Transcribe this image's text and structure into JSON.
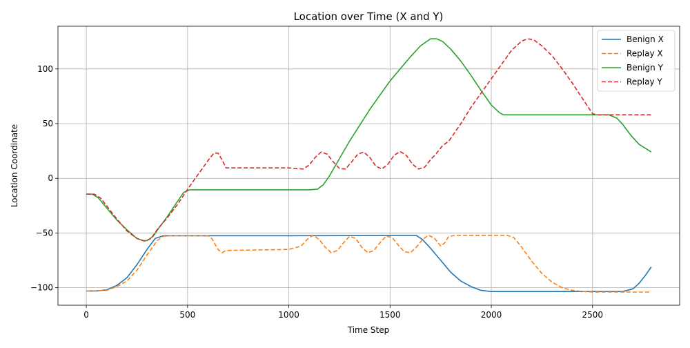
{
  "chart_data": {
    "type": "line",
    "title": "Location over Time (X and Y)",
    "xlabel": "Time Step",
    "ylabel": "Location Coordinate",
    "xlim": [
      -140,
      2930
    ],
    "ylim": [
      -116,
      139
    ],
    "xticks": [
      0,
      500,
      1000,
      1500,
      2000,
      2500
    ],
    "yticks": [
      -100,
      -50,
      0,
      50,
      100
    ],
    "xtick_labels": [
      "0",
      "500",
      "1000",
      "1500",
      "2000",
      "2500"
    ],
    "ytick_labels": [
      "−100",
      "−50",
      "0",
      "50",
      "100"
    ],
    "grid": true,
    "legend_position": "top-right",
    "series": [
      {
        "name": "Benign X",
        "color": "#1f77b4",
        "style": "solid",
        "points": [
          [
            0,
            -103
          ],
          [
            50,
            -103
          ],
          [
            100,
            -102
          ],
          [
            150,
            -98
          ],
          [
            200,
            -91
          ],
          [
            250,
            -79
          ],
          [
            300,
            -65
          ],
          [
            340,
            -55
          ],
          [
            380,
            -52.5
          ],
          [
            500,
            -52.5
          ],
          [
            1000,
            -52.5
          ],
          [
            1500,
            -52.3
          ],
          [
            1630,
            -52.3
          ],
          [
            1660,
            -56
          ],
          [
            1700,
            -64
          ],
          [
            1750,
            -75
          ],
          [
            1800,
            -86
          ],
          [
            1850,
            -94
          ],
          [
            1900,
            -99
          ],
          [
            1950,
            -102.5
          ],
          [
            2000,
            -103.5
          ],
          [
            2500,
            -103.5
          ],
          [
            2650,
            -103.5
          ],
          [
            2700,
            -101
          ],
          [
            2730,
            -96
          ],
          [
            2760,
            -89
          ],
          [
            2790,
            -81
          ]
        ]
      },
      {
        "name": "Replay X",
        "color": "#ff7f0e",
        "style": "dashed",
        "points": [
          [
            0,
            -103
          ],
          [
            100,
            -102.5
          ],
          [
            150,
            -99
          ],
          [
            200,
            -94
          ],
          [
            250,
            -84
          ],
          [
            300,
            -70
          ],
          [
            350,
            -57
          ],
          [
            380,
            -53
          ],
          [
            420,
            -52.5
          ],
          [
            600,
            -52.5
          ],
          [
            620,
            -55
          ],
          [
            650,
            -65
          ],
          [
            670,
            -68
          ],
          [
            690,
            -66
          ],
          [
            1000,
            -65
          ],
          [
            1060,
            -62
          ],
          [
            1090,
            -56
          ],
          [
            1120,
            -52
          ],
          [
            1150,
            -56
          ],
          [
            1180,
            -63
          ],
          [
            1210,
            -68
          ],
          [
            1240,
            -66
          ],
          [
            1270,
            -59
          ],
          [
            1300,
            -53
          ],
          [
            1330,
            -55
          ],
          [
            1360,
            -63
          ],
          [
            1390,
            -68
          ],
          [
            1420,
            -66
          ],
          [
            1450,
            -59
          ],
          [
            1480,
            -53
          ],
          [
            1510,
            -54
          ],
          [
            1540,
            -61
          ],
          [
            1570,
            -67
          ],
          [
            1600,
            -68
          ],
          [
            1630,
            -63
          ],
          [
            1660,
            -56
          ],
          [
            1690,
            -52
          ],
          [
            1720,
            -55
          ],
          [
            1750,
            -62
          ],
          [
            1770,
            -59
          ],
          [
            1790,
            -53
          ],
          [
            1820,
            -52.3
          ],
          [
            2000,
            -52.3
          ],
          [
            2080,
            -52.3
          ],
          [
            2110,
            -54
          ],
          [
            2150,
            -63
          ],
          [
            2200,
            -76
          ],
          [
            2250,
            -87
          ],
          [
            2300,
            -95
          ],
          [
            2350,
            -100
          ],
          [
            2400,
            -102.5
          ],
          [
            2450,
            -103.5
          ],
          [
            2500,
            -104
          ],
          [
            2790,
            -104
          ]
        ]
      },
      {
        "name": "Benign Y",
        "color": "#2ca02c",
        "style": "solid",
        "points": [
          [
            0,
            -14.5
          ],
          [
            30,
            -14.5
          ],
          [
            60,
            -18
          ],
          [
            100,
            -27
          ],
          [
            150,
            -38
          ],
          [
            200,
            -47
          ],
          [
            250,
            -55
          ],
          [
            280,
            -57
          ],
          [
            300,
            -57
          ],
          [
            330,
            -53
          ],
          [
            360,
            -45
          ],
          [
            400,
            -35
          ],
          [
            440,
            -24
          ],
          [
            480,
            -13
          ],
          [
            510,
            -10.5
          ],
          [
            1100,
            -10.5
          ],
          [
            1140,
            -10
          ],
          [
            1170,
            -6
          ],
          [
            1200,
            2
          ],
          [
            1300,
            34
          ],
          [
            1400,
            63
          ],
          [
            1500,
            89
          ],
          [
            1600,
            111
          ],
          [
            1650,
            121
          ],
          [
            1700,
            127.5
          ],
          [
            1730,
            127.5
          ],
          [
            1760,
            125
          ],
          [
            1800,
            118
          ],
          [
            1850,
            107
          ],
          [
            1900,
            94
          ],
          [
            1950,
            80
          ],
          [
            2000,
            67
          ],
          [
            2040,
            60
          ],
          [
            2060,
            58
          ],
          [
            2300,
            58
          ],
          [
            2580,
            58
          ],
          [
            2620,
            55
          ],
          [
            2650,
            49
          ],
          [
            2690,
            39
          ],
          [
            2730,
            31
          ],
          [
            2790,
            24
          ]
        ]
      },
      {
        "name": "Replay Y",
        "color": "#d62728",
        "style": "dashed",
        "points": [
          [
            0,
            -14.5
          ],
          [
            40,
            -14.5
          ],
          [
            70,
            -18
          ],
          [
            100,
            -25
          ],
          [
            150,
            -37
          ],
          [
            200,
            -48
          ],
          [
            250,
            -55
          ],
          [
            290,
            -57.5
          ],
          [
            320,
            -55
          ],
          [
            350,
            -47
          ],
          [
            400,
            -36
          ],
          [
            450,
            -24
          ],
          [
            500,
            -10
          ],
          [
            550,
            3
          ],
          [
            600,
            16
          ],
          [
            630,
            23
          ],
          [
            650,
            23
          ],
          [
            670,
            17
          ],
          [
            690,
            9.5
          ],
          [
            1000,
            9.5
          ],
          [
            1040,
            9
          ],
          [
            1070,
            8.5
          ],
          [
            1100,
            12
          ],
          [
            1130,
            19
          ],
          [
            1160,
            24
          ],
          [
            1190,
            22
          ],
          [
            1220,
            15
          ],
          [
            1250,
            9
          ],
          [
            1280,
            8.5
          ],
          [
            1310,
            15
          ],
          [
            1340,
            22
          ],
          [
            1370,
            24
          ],
          [
            1400,
            19
          ],
          [
            1430,
            11
          ],
          [
            1460,
            8.5
          ],
          [
            1490,
            13
          ],
          [
            1520,
            21
          ],
          [
            1550,
            24.5
          ],
          [
            1580,
            21
          ],
          [
            1610,
            13
          ],
          [
            1640,
            8.5
          ],
          [
            1670,
            10
          ],
          [
            1700,
            17
          ],
          [
            1730,
            23
          ],
          [
            1760,
            30
          ],
          [
            1790,
            34
          ],
          [
            1850,
            50
          ],
          [
            1900,
            65
          ],
          [
            2000,
            91
          ],
          [
            2050,
            104
          ],
          [
            2100,
            117
          ],
          [
            2150,
            125.5
          ],
          [
            2180,
            127.5
          ],
          [
            2210,
            126.5
          ],
          [
            2250,
            121
          ],
          [
            2300,
            112
          ],
          [
            2350,
            100
          ],
          [
            2400,
            87
          ],
          [
            2450,
            73
          ],
          [
            2500,
            59
          ],
          [
            2520,
            58
          ],
          [
            2790,
            58
          ]
        ]
      }
    ]
  }
}
